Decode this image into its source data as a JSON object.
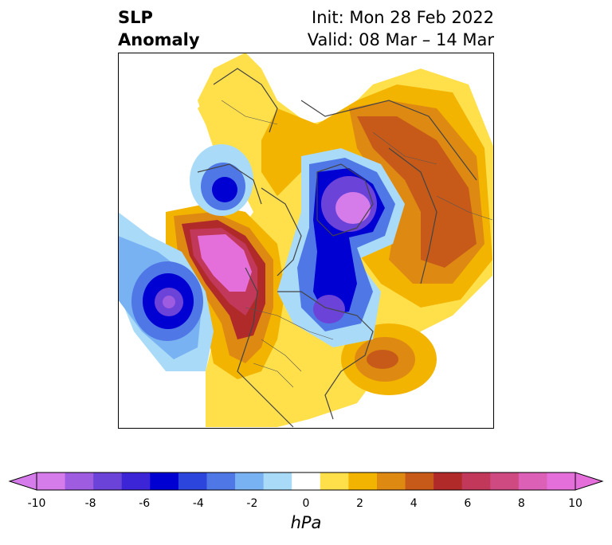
{
  "header": {
    "title_line1": "SLP",
    "title_line2": "Anomaly",
    "init_label": "Init: Mon 28 Feb 2022",
    "valid_label": "Valid: 08 Mar – 14 Mar"
  },
  "colorbar": {
    "label": "hPa",
    "tick_labels": [
      "-10",
      "-8",
      "-6",
      "-4",
      "-2",
      "0",
      "2",
      "4",
      "6",
      "8",
      "10"
    ],
    "colors": [
      "#d57bea",
      "#9e5de0",
      "#6b43d8",
      "#3b25d6",
      "#0000d2",
      "#2c45dc",
      "#4f78e6",
      "#78b2f2",
      "#a9dbf8",
      "#ffffff",
      "#ffe04a",
      "#f3b400",
      "#de8a12",
      "#c75a18",
      "#b02a2a",
      "#c2385a",
      "#d04a82",
      "#dc60b6",
      "#e46fda"
    ]
  },
  "map": {
    "projection": "north-polar-stereographic",
    "variable": "sea level pressure anomaly"
  }
}
